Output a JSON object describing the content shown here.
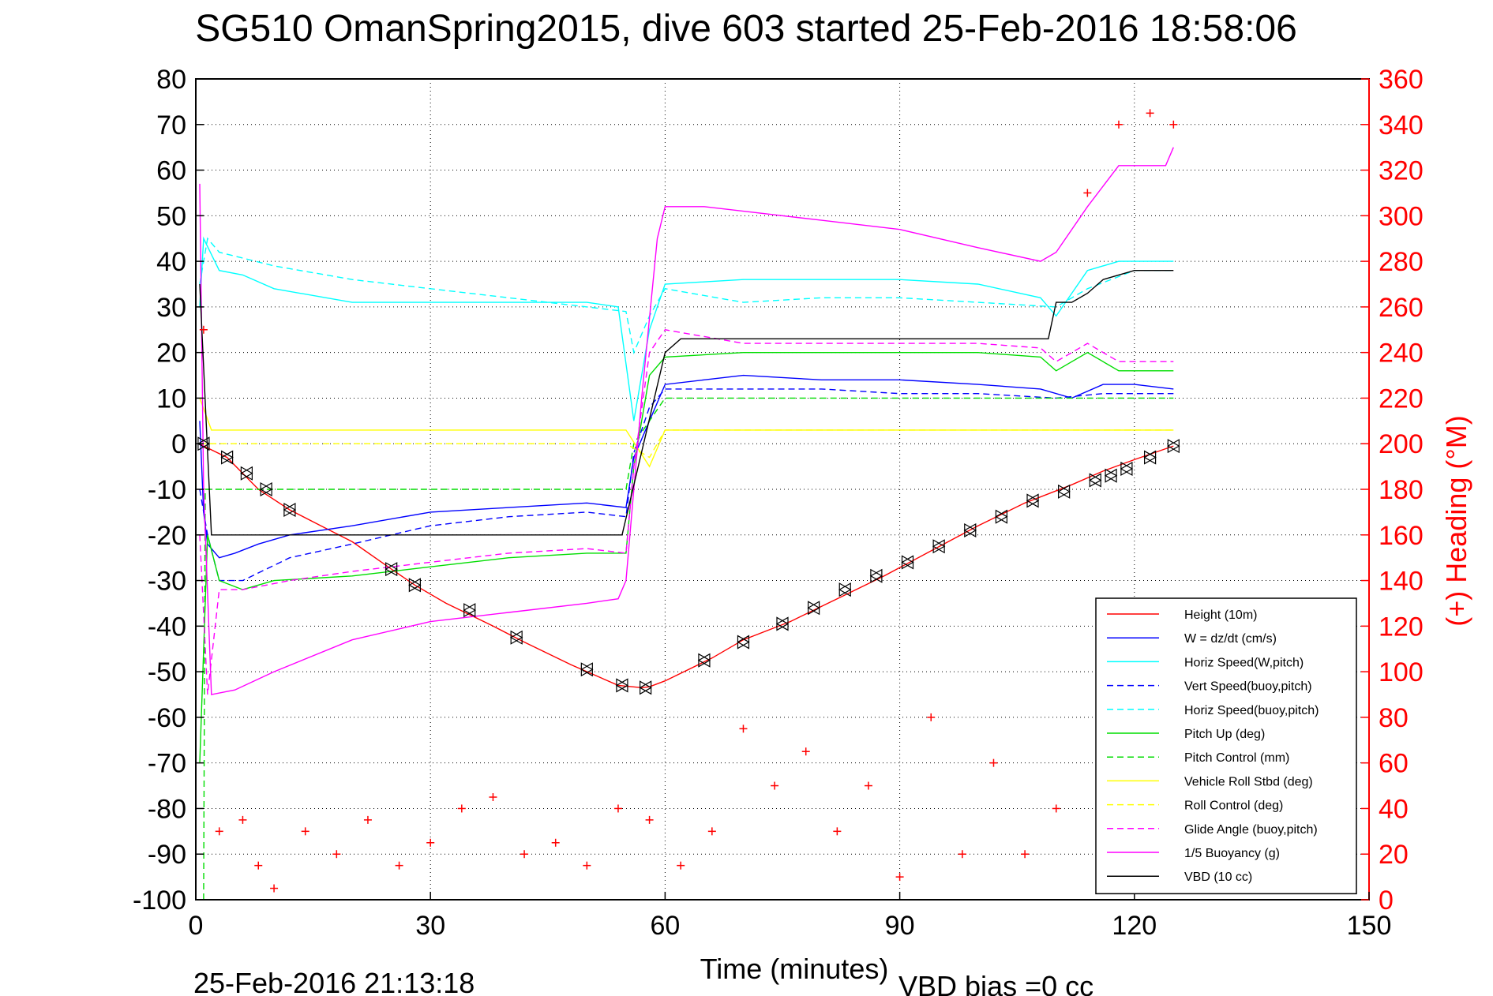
{
  "chart_data": {
    "type": "line",
    "title": "SG510 OmanSpring2015, dive 603 started 25-Feb-2016 18:58:06",
    "xlabel": "Time (minutes)",
    "ylabel_right": "(+) Heading (°M)",
    "footer_left": "25-Feb-2016 21:13:18",
    "footer_right": "VBD bias =0 cc",
    "xlim": [
      0,
      150
    ],
    "ylim": [
      -100,
      80
    ],
    "ylim_right": [
      0,
      360
    ],
    "xticks": [
      "0",
      "30",
      "60",
      "90",
      "120",
      "150"
    ],
    "yticks": [
      "80",
      "70",
      "60",
      "50",
      "40",
      "30",
      "20",
      "10",
      "0",
      "-10",
      "-20",
      "-30",
      "-40",
      "-50",
      "-60",
      "-70",
      "-80",
      "-90",
      "-100"
    ],
    "yticks_right": [
      "360",
      "340",
      "320",
      "300",
      "280",
      "260",
      "240",
      "220",
      "200",
      "180",
      "160",
      "140",
      "120",
      "100",
      "80",
      "60",
      "40",
      "20",
      "0"
    ],
    "grid": true,
    "legend_position": "bottom-right",
    "series": [
      {
        "name": "Height (10m)",
        "color": "#ff0000",
        "style": "solid",
        "x": [
          0.5,
          1,
          4,
          6,
          8,
          12,
          16,
          20,
          25,
          28,
          32,
          38,
          42,
          48,
          54,
          57,
          58,
          60,
          66,
          70,
          76,
          82,
          88,
          94,
          100,
          106,
          112,
          116,
          120,
          125
        ],
        "values": [
          0,
          -0.5,
          -3,
          -6.5,
          -10,
          -14.5,
          -18,
          -21.5,
          -27.5,
          -31,
          -35,
          -40,
          -43.5,
          -48.5,
          -53,
          -53.5,
          -53.3,
          -52,
          -47,
          -43,
          -39,
          -34,
          -29,
          -23.5,
          -18,
          -13,
          -9,
          -6,
          -3.5,
          -0.5
        ]
      },
      {
        "name": "W = dz/dt (cm/s)",
        "color": "#0000ff",
        "style": "solid",
        "x": [
          0.5,
          1,
          1.5,
          3,
          5,
          8,
          12,
          20,
          30,
          40,
          50,
          55,
          56,
          58,
          60,
          65,
          70,
          80,
          90,
          100,
          108,
          112,
          116,
          120,
          125
        ],
        "values": [
          5,
          -15,
          -22,
          -25,
          -24,
          -22,
          -20,
          -18,
          -15,
          -14,
          -13,
          -14,
          -3,
          5,
          13,
          14,
          15,
          14,
          14,
          13,
          12,
          10,
          13,
          13,
          12
        ]
      },
      {
        "name": "Horiz Speed(W,pitch)",
        "color": "#00ffff",
        "style": "solid",
        "x": [
          0.5,
          1,
          3,
          6,
          10,
          20,
          30,
          40,
          50,
          54,
          56,
          58,
          60,
          70,
          80,
          90,
          100,
          108,
          110,
          114,
          118,
          125
        ],
        "values": [
          30,
          45,
          38,
          37,
          34,
          31,
          31,
          31,
          31,
          30,
          5,
          25,
          35,
          36,
          36,
          36,
          35,
          32,
          28,
          38,
          40,
          40
        ]
      },
      {
        "name": "Vert Speed(buoy,pitch)",
        "color": "#0000ff",
        "style": "dashed",
        "x": [
          0.5,
          1.5,
          3,
          6,
          12,
          20,
          30,
          40,
          50,
          55,
          56,
          58,
          60,
          70,
          80,
          90,
          100,
          110,
          116,
          125
        ],
        "values": [
          -10,
          -20,
          -30,
          -30,
          -25,
          -22,
          -18,
          -16,
          -15,
          -16,
          -2,
          8,
          12,
          12,
          12,
          11,
          11,
          10,
          11,
          11
        ]
      },
      {
        "name": "Horiz Speed(buoy,pitch)",
        "color": "#00ffff",
        "style": "dashed",
        "x": [
          0.5,
          1.5,
          3,
          10,
          20,
          30,
          40,
          50,
          55,
          56,
          58,
          60,
          70,
          80,
          90,
          100,
          110,
          114,
          120,
          125
        ],
        "values": [
          35,
          45,
          42,
          39,
          36,
          34,
          32,
          30,
          29,
          20,
          28,
          34,
          31,
          32,
          32,
          31,
          30,
          34,
          38,
          38
        ]
      },
      {
        "name": "Pitch Up (deg)",
        "color": "#00dd00",
        "style": "solid",
        "x": [
          0.5,
          1.5,
          3,
          6,
          10,
          20,
          30,
          40,
          50,
          55,
          56,
          58,
          60,
          70,
          80,
          90,
          100,
          108,
          110,
          114,
          118,
          125
        ],
        "values": [
          -70,
          -20,
          -30,
          -32,
          -30,
          -29,
          -27,
          -25,
          -24,
          -24,
          -5,
          15,
          19,
          20,
          20,
          20,
          20,
          19,
          16,
          20,
          16,
          16
        ]
      },
      {
        "name": "Pitch Control (mm)",
        "color": "#00dd00",
        "style": "dashed",
        "x": [
          1,
          1.2,
          5,
          15,
          25,
          35,
          45,
          55,
          56,
          60,
          70,
          80,
          90,
          100,
          110,
          115,
          125
        ],
        "values": [
          -100,
          -10,
          -10,
          -10,
          -10,
          -10,
          -10,
          -10,
          0,
          10,
          10,
          10,
          10,
          10,
          10,
          10,
          10
        ]
      },
      {
        "name": "Vehicle Roll Stbd (deg)",
        "color": "#ffff00",
        "style": "solid",
        "x": [
          0.5,
          2,
          5,
          10,
          20,
          30,
          40,
          50,
          55,
          58,
          60,
          70,
          80,
          90,
          100,
          110,
          120,
          125
        ],
        "values": [
          10,
          3,
          3,
          3,
          3,
          3,
          3,
          3,
          3,
          -5,
          3,
          3,
          3,
          3,
          3,
          3,
          3,
          3
        ]
      },
      {
        "name": "Roll Control (deg)",
        "color": "#ffff00",
        "style": "dashed",
        "x": [
          0.5,
          2,
          10,
          20,
          30,
          40,
          50,
          55,
          58,
          60,
          70,
          80,
          90,
          100,
          110,
          120,
          125
        ],
        "values": [
          0,
          0,
          0,
          0,
          0,
          0,
          0,
          0,
          -3,
          3,
          3,
          3,
          3,
          3,
          3,
          3,
          3
        ]
      },
      {
        "name": "Glide Angle (buoy,pitch)",
        "color": "#ff00ff",
        "style": "dashed",
        "x": [
          0.5,
          1.5,
          3,
          6,
          12,
          20,
          30,
          40,
          50,
          55,
          56,
          58,
          60,
          70,
          80,
          90,
          100,
          108,
          110,
          114,
          118,
          125
        ],
        "values": [
          -20,
          -55,
          -32,
          -32,
          -30,
          -28,
          -26,
          -24,
          -23,
          -24,
          -5,
          20,
          25,
          22,
          22,
          22,
          22,
          21,
          18,
          22,
          18,
          18
        ]
      },
      {
        "name": "1/5 Buoyancy (g)",
        "color": "#ff00ff",
        "style": "solid",
        "x": [
          0.5,
          1,
          2,
          5,
          10,
          20,
          30,
          40,
          50,
          54,
          55,
          57,
          59,
          60,
          65,
          70,
          80,
          90,
          100,
          108,
          110,
          114,
          118,
          124,
          125
        ],
        "values": [
          57,
          -10,
          -55,
          -54,
          -50,
          -43,
          -39,
          -37,
          -35,
          -34,
          -30,
          10,
          45,
          52,
          52,
          51,
          49,
          47,
          43,
          40,
          42,
          52,
          61,
          61,
          65
        ]
      },
      {
        "name": "VBD (10 cc)",
        "color": "#000000",
        "style": "solid",
        "x": [
          0.5,
          2,
          3,
          54,
          54.5,
          60,
          62,
          109,
          110,
          112,
          114,
          116,
          118,
          120,
          125
        ],
        "values": [
          35,
          -20,
          -20,
          -20,
          -20,
          20,
          23,
          23,
          31,
          31,
          33,
          36,
          37,
          38,
          38
        ]
      }
    ],
    "heading_series": {
      "name": "(+) Heading",
      "marker": "+",
      "color": "#ff0000",
      "x": [
        1,
        3,
        6,
        8,
        10,
        14,
        18,
        22,
        26,
        30,
        34,
        38,
        42,
        46,
        50,
        54,
        58,
        62,
        66,
        70,
        74,
        78,
        82,
        86,
        90,
        94,
        98,
        102,
        106,
        110,
        114,
        118,
        122,
        125
      ],
      "values": [
        250,
        30,
        35,
        15,
        5,
        30,
        20,
        35,
        15,
        25,
        40,
        45,
        20,
        25,
        15,
        40,
        35,
        15,
        30,
        75,
        50,
        65,
        30,
        50,
        10,
        80,
        20,
        60,
        20,
        40,
        310,
        340,
        345,
        340
      ]
    },
    "markers": {
      "triangles": [
        [
          1,
          0
        ],
        [
          4,
          -3
        ],
        [
          6.5,
          -6.5
        ],
        [
          9,
          -10
        ],
        [
          12,
          -14.5
        ],
        [
          25,
          -27.5
        ],
        [
          28,
          -31
        ],
        [
          35,
          -36.5
        ],
        [
          41,
          -42.5
        ],
        [
          50,
          -49.5
        ],
        [
          54.5,
          -53
        ],
        [
          57.5,
          -53.5
        ],
        [
          65,
          -47.5
        ],
        [
          70,
          -43.5
        ],
        [
          75,
          -39.5
        ],
        [
          79,
          -36
        ],
        [
          83,
          -32
        ],
        [
          87,
          -29
        ],
        [
          91,
          -26
        ],
        [
          95,
          -22.5
        ],
        [
          99,
          -19
        ],
        [
          103,
          -16
        ],
        [
          107,
          -12.5
        ],
        [
          111,
          -10.5
        ],
        [
          115,
          -8
        ],
        [
          117,
          -7
        ],
        [
          119,
          -5.5
        ],
        [
          122,
          -3
        ],
        [
          125,
          -0.5
        ]
      ]
    }
  }
}
